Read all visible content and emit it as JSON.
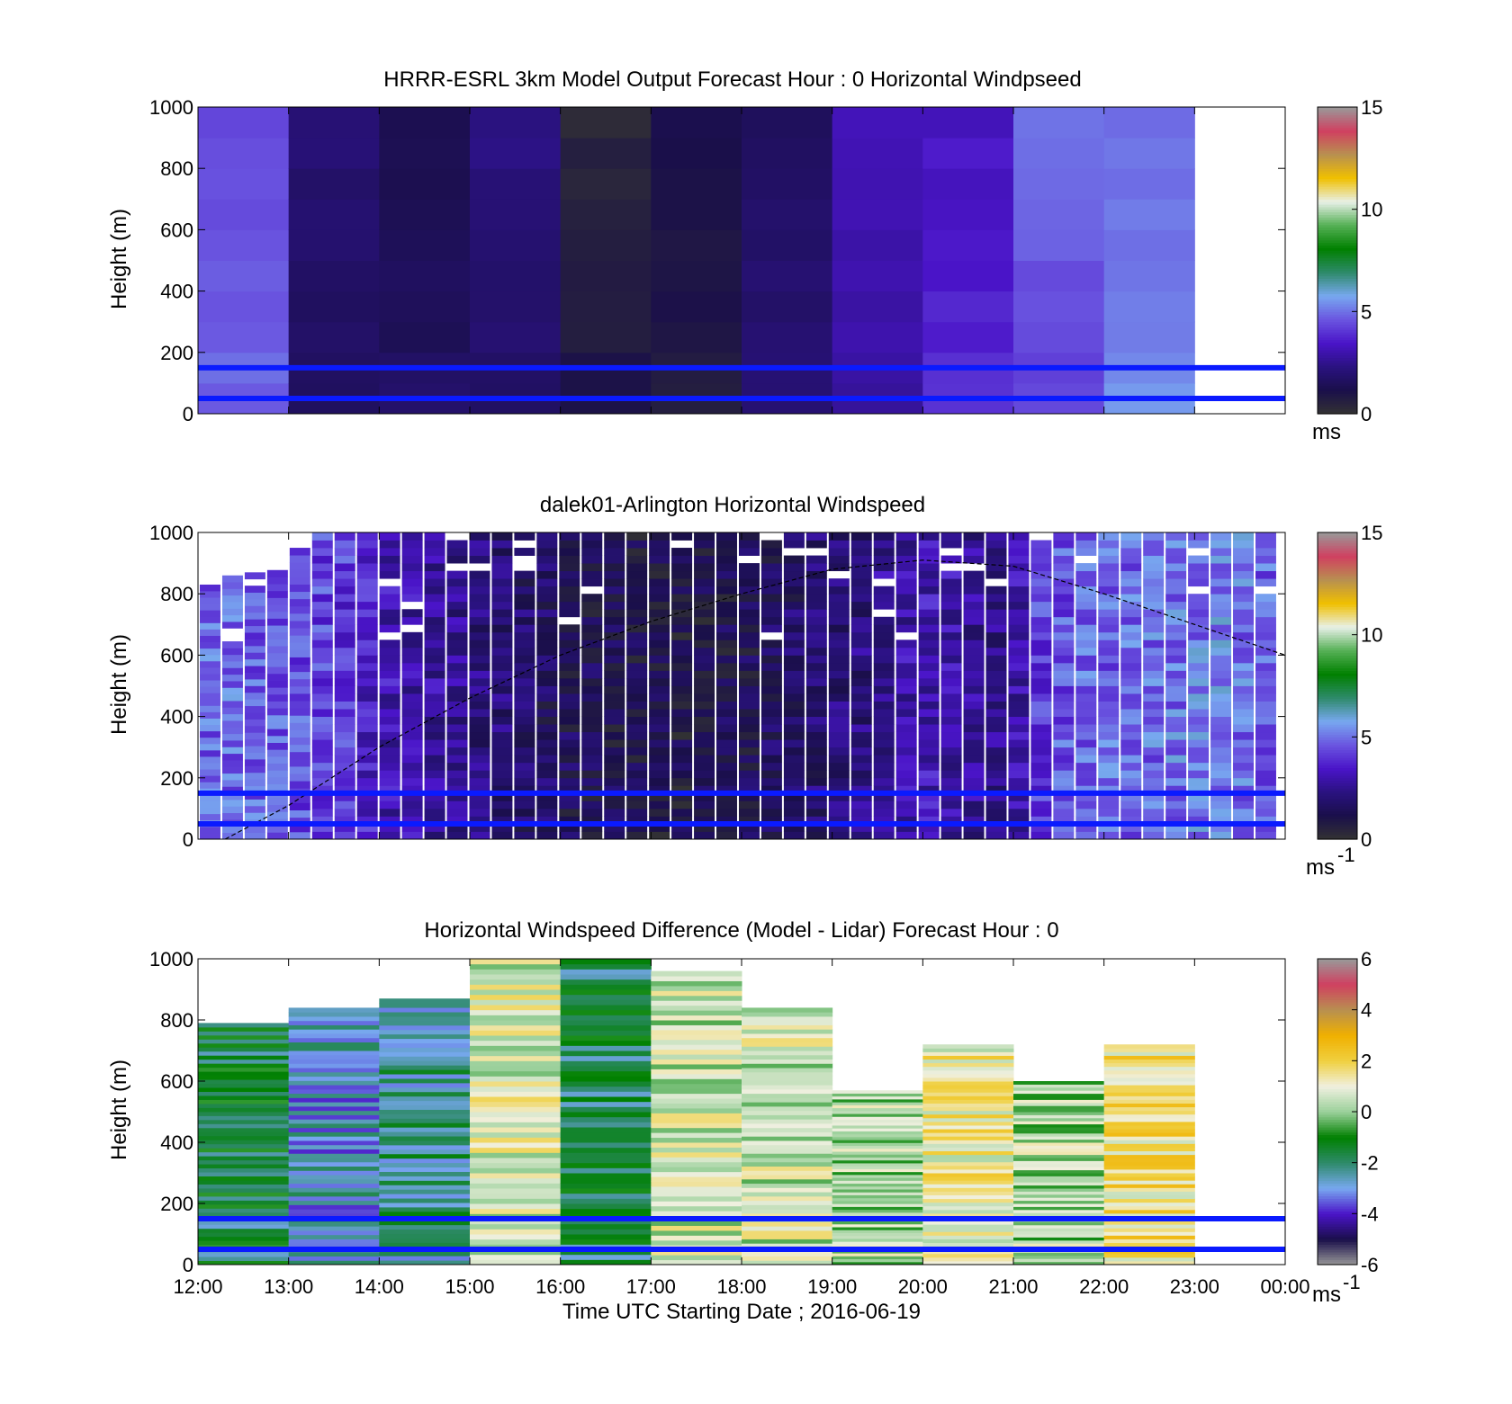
{
  "colors": {
    "speed_colormap": [
      "#333333",
      "#1a0f4a",
      "#2a1280",
      "#4a14c8",
      "#6a55e0",
      "#78a8f0",
      "#2e8a6a",
      "#008000",
      "#55b055",
      "#e8f0e8",
      "#f0c000",
      "#b89050",
      "#d04060",
      "#999999"
    ],
    "diff_colormap": [
      "#999999",
      "#1a0f4a",
      "#4a14c8",
      "#78a8f0",
      "#2e8a6a",
      "#008000",
      "#9ad09a",
      "#f0f0e0",
      "#f0d040",
      "#f0b000",
      "#b89050",
      "#d04060",
      "#999999"
    ],
    "reference_lines": "#0a1aff",
    "trajectory": "#000000"
  },
  "chart_data": [
    {
      "type": "heatmap",
      "title": "HRRR-ESRL 3km Model Output   Forecast Hour : 0 Horizontal Windpseed",
      "xlabel": "",
      "ylabel": "Height (m)",
      "ylim": [
        0,
        1000
      ],
      "yticks": [
        "0",
        "200",
        "400",
        "600",
        "800",
        "1000"
      ],
      "xlim_hours": [
        12,
        24
      ],
      "colorbar": {
        "ticks": [
          "0",
          "5",
          "10",
          "15"
        ],
        "range": [
          0,
          15
        ],
        "unit": "ms"
      },
      "reference_lines_m": [
        150,
        50
      ],
      "columns": [
        {
          "start": 12,
          "end": 13,
          "v": 4.6
        },
        {
          "start": 13,
          "end": 14,
          "v": 1.8
        },
        {
          "start": 14,
          "end": 15,
          "v": 1.4
        },
        {
          "start": 15,
          "end": 16,
          "v": 2.0
        },
        {
          "start": 16,
          "end": 17,
          "v": 0.7
        },
        {
          "start": 17,
          "end": 18,
          "v": 1.0
        },
        {
          "start": 18,
          "end": 19,
          "v": 1.8
        },
        {
          "start": 19,
          "end": 20,
          "v": 3.0
        },
        {
          "start": 20,
          "end": 21,
          "v": 3.6
        },
        {
          "start": 21,
          "end": 22,
          "v": 4.6
        },
        {
          "start": 22,
          "end": 23,
          "v": 5.2
        }
      ]
    },
    {
      "type": "heatmap",
      "title": "dalek01-Arlington  Horizontal Windspeed",
      "xlabel": "",
      "ylabel": "Height (m)",
      "ylim": [
        0,
        1000
      ],
      "yticks": [
        "0",
        "200",
        "400",
        "600",
        "800",
        "1000"
      ],
      "xlim_hours": [
        12,
        24
      ],
      "colorbar": {
        "ticks": [
          "0",
          "5",
          "10",
          "15"
        ],
        "range": [
          0,
          15
        ],
        "unit": "ms",
        "unit_exp": "-1"
      },
      "reference_lines_m": [
        150,
        50
      ],
      "profile_tops_m": [
        830,
        860,
        870,
        900,
        950,
        1000,
        1000,
        1000,
        1000,
        1000,
        1000,
        1000,
        1000,
        1000,
        1000,
        1000,
        1000,
        1000,
        1000,
        1000,
        1000,
        1000,
        1000,
        1000,
        1000,
        1000,
        1000,
        1000,
        1000,
        1000,
        1000,
        1000,
        1000,
        1000,
        1000,
        1000,
        1000,
        1000,
        1000,
        1000,
        1000,
        1000,
        1000,
        1000,
        1000,
        1000,
        1000,
        1000
      ],
      "profile_mean_ms": [
        4.8,
        4.9,
        4.7,
        4.6,
        4.5,
        4.3,
        4.1,
        3.6,
        3.2,
        3.0,
        2.8,
        2.5,
        2.2,
        2.0,
        1.8,
        1.6,
        1.4,
        1.3,
        1.2,
        1.1,
        1.1,
        1.0,
        1.1,
        1.2,
        1.3,
        1.5,
        1.7,
        1.9,
        2.0,
        2.2,
        2.6,
        3.0,
        3.2,
        3.0,
        2.6,
        2.4,
        3.0,
        4.2,
        4.6,
        4.8,
        4.8,
        4.8,
        4.9,
        5.0,
        5.1,
        5.2,
        5.0,
        4.8
      ],
      "trajectory": {
        "x_hours": [
          12.3,
          13,
          14,
          15,
          16,
          17,
          18,
          19,
          20,
          21,
          22,
          23,
          24
        ],
        "y_m": [
          0,
          110,
          300,
          460,
          600,
          710,
          800,
          880,
          910,
          890,
          800,
          700,
          600
        ]
      }
    },
    {
      "type": "heatmap",
      "title": "Horizontal Windspeed Difference (Model - Lidar) Forecast Hour : 0",
      "xlabel": "Time UTC  Starting Date ; 2016-06-19",
      "ylabel": "Height (m)",
      "ylim": [
        0,
        1000
      ],
      "yticks": [
        "0",
        "200",
        "400",
        "600",
        "800",
        "1000"
      ],
      "xticks": [
        "12:00",
        "13:00",
        "14:00",
        "15:00",
        "16:00",
        "17:00",
        "18:00",
        "19:00",
        "20:00",
        "21:00",
        "22:00",
        "23:00",
        "00:00"
      ],
      "xlim_hours": [
        12,
        24
      ],
      "colorbar": {
        "ticks": [
          "-6",
          "-4",
          "-2",
          "0",
          "2",
          "4",
          "6"
        ],
        "range": [
          -6,
          6
        ],
        "unit": "ms",
        "unit_exp": "-1"
      },
      "reference_lines_m": [
        150,
        50
      ],
      "columns": [
        {
          "start": 12,
          "end": 13,
          "top": 790,
          "v": -1.8
        },
        {
          "start": 13,
          "end": 14,
          "top": 840,
          "v": -2.8
        },
        {
          "start": 14,
          "end": 15,
          "top": 870,
          "v": -2.2
        },
        {
          "start": 15,
          "end": 16,
          "top": 1000,
          "v": 0.8
        },
        {
          "start": 16,
          "end": 17,
          "top": 1000,
          "v": -1.8
        },
        {
          "start": 17,
          "end": 18,
          "top": 960,
          "v": 0.6
        },
        {
          "start": 18,
          "end": 19,
          "top": 840,
          "v": 0.6
        },
        {
          "start": 19,
          "end": 20,
          "top": 570,
          "v": 0.2
        },
        {
          "start": 20,
          "end": 21,
          "top": 720,
          "v": 1.2
        },
        {
          "start": 21,
          "end": 22,
          "top": 600,
          "v": 0.2
        },
        {
          "start": 22,
          "end": 23,
          "top": 720,
          "v": 1.6
        }
      ]
    }
  ]
}
